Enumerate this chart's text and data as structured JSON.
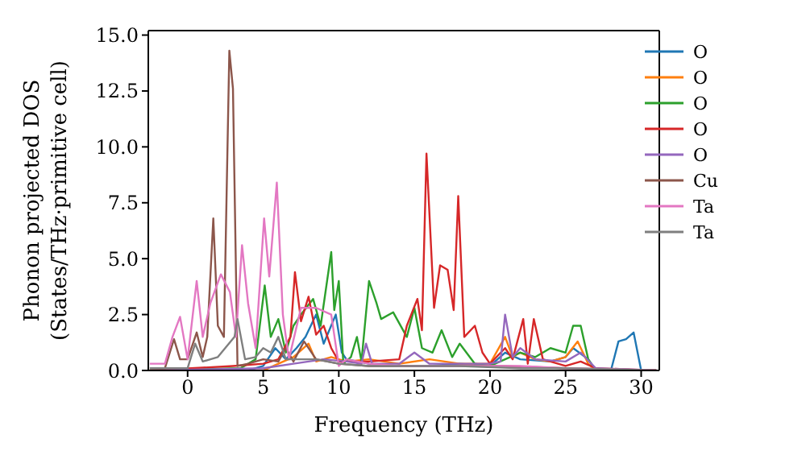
{
  "chart_data": {
    "type": "line",
    "xlabel": "Frequency (THz)",
    "ylabel": "Phonon projected DOS\n(States/THz·primitive cell)",
    "xlim": [
      -2.6,
      31.2
    ],
    "ylim": [
      0,
      15.2
    ],
    "xticks": [
      0,
      5,
      10,
      15,
      20,
      25,
      30
    ],
    "yticks": [
      {
        "value": 0,
        "label": "0.0"
      },
      2.5,
      {
        "value": 5,
        "label": "5.0"
      },
      7.5,
      {
        "value": 10,
        "label": "10.0"
      },
      12.5,
      {
        "value": 15,
        "label": "15.0"
      }
    ],
    "legend": "top right",
    "marker": "none",
    "line_style": "solid",
    "series": [
      {
        "name": "O",
        "color": "#1f77b4",
        "x": [
          -2.5,
          4,
          5,
          5.8,
          6.5,
          7.2,
          7.8,
          8.5,
          9,
          9.8,
          10.2,
          10.5,
          12,
          14,
          16,
          18,
          20,
          21,
          22,
          24,
          25,
          25.5,
          26.5,
          27,
          28,
          28.5,
          29,
          29.5,
          30,
          31
        ],
        "values": [
          0,
          0,
          0.2,
          1.0,
          0.5,
          1.0,
          1.5,
          2.5,
          1.2,
          2.5,
          0.8,
          0.5,
          0.3,
          0.2,
          0.2,
          0.3,
          0.2,
          0.8,
          0.5,
          0.4,
          0.6,
          1.0,
          0.5,
          0,
          0,
          1.3,
          1.4,
          1.7,
          0,
          0
        ]
      },
      {
        "name": "O",
        "color": "#ff7f0e",
        "x": [
          -2.5,
          5,
          6,
          7,
          8,
          8.5,
          9.5,
          10.5,
          12,
          14,
          16,
          18,
          20,
          21,
          21.5,
          22,
          23,
          24,
          25,
          25.8,
          26.5,
          27,
          31
        ],
        "values": [
          0,
          0,
          0.3,
          0.6,
          1.2,
          0.4,
          0.6,
          0.4,
          0.5,
          0.3,
          0.5,
          0.3,
          0.3,
          1.5,
          0.6,
          0.8,
          0.5,
          0.4,
          0.6,
          1.3,
          0.3,
          0,
          0
        ]
      },
      {
        "name": "O",
        "color": "#2ca02c",
        "x": [
          -2.5,
          3.5,
          4.5,
          5.1,
          5.5,
          6,
          6.5,
          7,
          7.5,
          8.3,
          8.8,
          9.5,
          9.7,
          10,
          10.3,
          10.8,
          11.2,
          11.5,
          12,
          12.5,
          12.8,
          13.6,
          14.5,
          15,
          15.5,
          16.2,
          16.8,
          17.5,
          18,
          19,
          20,
          21,
          22,
          23,
          24,
          25,
          25.5,
          26,
          26.5,
          27,
          31
        ],
        "values": [
          0,
          0.1,
          0.5,
          3.8,
          1.5,
          2.3,
          0.8,
          2.0,
          2.5,
          3.2,
          2.0,
          5.3,
          2.7,
          4.0,
          0.3,
          0.6,
          1.5,
          0.4,
          4.0,
          3.0,
          2.3,
          2.6,
          1.5,
          2.8,
          1.0,
          0.8,
          1.8,
          0.6,
          1.2,
          0.3,
          0.2,
          0.5,
          0.8,
          0.6,
          1.0,
          0.8,
          2.0,
          2.0,
          0.5,
          0,
          0
        ]
      },
      {
        "name": "O",
        "color": "#d62728",
        "x": [
          -2.5,
          3,
          5,
          6,
          6.8,
          7.1,
          7.5,
          8,
          8.5,
          9,
          9.5,
          10,
          12,
          14,
          14.5,
          15.2,
          15.5,
          15.8,
          16.3,
          16.7,
          17.2,
          17.6,
          17.9,
          18.3,
          19,
          19.5,
          20,
          21,
          21.5,
          22.2,
          22.5,
          22.9,
          23.5,
          25,
          26,
          27,
          31
        ],
        "values": [
          0,
          0.2,
          0.3,
          0.5,
          1.5,
          4.4,
          2.2,
          3.3,
          1.6,
          2.0,
          1.0,
          0.4,
          0.4,
          0.5,
          2.0,
          3.2,
          1.8,
          9.7,
          2.8,
          4.7,
          4.5,
          2.7,
          7.8,
          1.5,
          2.0,
          0.8,
          0.3,
          1.0,
          0.5,
          2.3,
          0.3,
          2.3,
          0.5,
          0.2,
          0.4,
          0.1,
          0
        ]
      },
      {
        "name": "O",
        "color": "#9467bd",
        "x": [
          -2.5,
          5,
          7,
          9,
          10.5,
          11.5,
          11.8,
          12.2,
          14,
          15,
          16,
          18,
          20,
          20.7,
          21,
          21.5,
          22,
          23,
          25,
          26,
          27,
          31
        ],
        "values": [
          0,
          0.1,
          0.3,
          0.5,
          0.4,
          0.3,
          1.2,
          0.3,
          0.3,
          0.8,
          0.3,
          0.3,
          0.3,
          0.4,
          2.5,
          0.6,
          1.0,
          0.5,
          0.4,
          0.8,
          0.1,
          0
        ]
      },
      {
        "name": "Cu",
        "color": "#8c564b",
        "x": [
          -2.5,
          -1.5,
          -0.9,
          -0.5,
          0,
          0.6,
          1,
          1.3,
          1.7,
          2,
          2.4,
          2.76,
          3.0,
          3.3,
          4,
          5,
          6,
          6.5,
          7,
          7.7,
          8.5,
          10,
          12,
          15,
          18,
          21,
          25,
          31
        ],
        "values": [
          0.1,
          0.1,
          1.4,
          0.5,
          0.5,
          1.7,
          0.6,
          1.5,
          6.8,
          2.0,
          1.5,
          14.3,
          12.6,
          0.2,
          0.3,
          0.5,
          0.4,
          1.0,
          0.4,
          1.3,
          0.5,
          0.3,
          0.2,
          0.2,
          0.2,
          0.2,
          0.1,
          0
        ]
      },
      {
        "name": "Ta",
        "color": "#e377c2",
        "x": [
          -2.5,
          -1.5,
          -1,
          -0.5,
          0,
          0.6,
          1,
          1.5,
          2.2,
          2.8,
          3.2,
          3.6,
          4.0,
          4.5,
          5.06,
          5.4,
          5.9,
          6.3,
          6.7,
          7.5,
          8.5,
          9.5,
          10,
          10.5,
          12,
          14,
          16,
          18,
          20,
          22,
          25,
          31
        ],
        "values": [
          0.3,
          0.3,
          1.5,
          2.4,
          0.5,
          4.0,
          1.5,
          3.0,
          4.3,
          3.5,
          1.5,
          5.6,
          3.0,
          1.0,
          6.8,
          4.2,
          8.4,
          2.5,
          0.5,
          2.8,
          2.8,
          2.5,
          0.2,
          0.5,
          0.3,
          0.2,
          0.2,
          0.2,
          0.2,
          0.2,
          0.1,
          0
        ]
      },
      {
        "name": "Ta",
        "color": "#7f7f7f",
        "x": [
          -2.5,
          0,
          0.5,
          1,
          2,
          3.1,
          3.3,
          3.8,
          4.5,
          5,
          5.5,
          6,
          6.5,
          7.5,
          8.5,
          10,
          12,
          15,
          18,
          22,
          25,
          31
        ],
        "values": [
          0.1,
          0.1,
          1.2,
          0.4,
          0.6,
          1.5,
          2.3,
          0.5,
          0.6,
          1.0,
          0.8,
          1.5,
          0.5,
          0.5,
          0.5,
          0.3,
          0.2,
          0.2,
          0.2,
          0.1,
          0.1,
          0
        ]
      }
    ]
  }
}
